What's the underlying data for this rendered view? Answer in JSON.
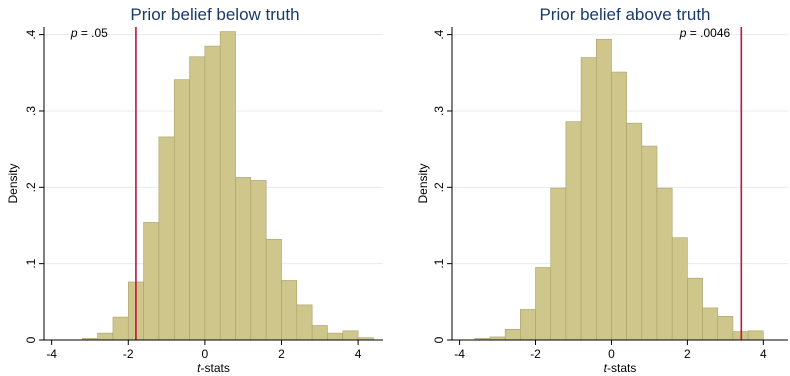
{
  "colors": {
    "bar_fill": "#cfc68c",
    "bar_stroke": "#a8a06a",
    "ref_line": "#c0143c",
    "grid": "#e6eaf0",
    "title": "#1a3a6b"
  },
  "chart_data": [
    {
      "type": "bar",
      "title": "Prior belief below truth",
      "xlabel_italic": "t",
      "xlabel_rest": "-stats",
      "ylabel": "Density",
      "xlim": [
        -4.2,
        4.65
      ],
      "ylim": [
        0,
        0.41
      ],
      "xticks": [
        -4,
        -2,
        0,
        2,
        4
      ],
      "xtick_labels": [
        "-4",
        "-2",
        "0",
        "2",
        "4"
      ],
      "yticks": [
        0,
        0.1,
        0.2,
        0.3,
        0.4
      ],
      "ytick_labels": [
        "0",
        ".1",
        ".2",
        ".3",
        ".4"
      ],
      "grid": true,
      "bin_edges": [
        -3.2,
        -2.8,
        -2.4,
        -2.0,
        -1.6,
        -1.2,
        -0.8,
        -0.4,
        0.0,
        0.4,
        0.8,
        1.2,
        1.6,
        2.0,
        2.4,
        2.8,
        3.2,
        3.6,
        4.0,
        4.4
      ],
      "values": [
        0.002,
        0.009,
        0.03,
        0.076,
        0.154,
        0.266,
        0.341,
        0.371,
        0.385,
        0.404,
        0.213,
        0.209,
        0.132,
        0.078,
        0.046,
        0.019,
        0.009,
        0.012,
        0.003
      ],
      "ref_x": -1.8,
      "annotation_italic": "p",
      "annotation_rest": " = .05",
      "annotation_x": -3.5,
      "annotation_y": 0.397
    },
    {
      "type": "bar",
      "title": "Prior belief above truth",
      "xlabel_italic": "t",
      "xlabel_rest": "-stats",
      "ylabel": "Density",
      "xlim": [
        -4.2,
        4.65
      ],
      "ylim": [
        0,
        0.41
      ],
      "xticks": [
        -4,
        -2,
        0,
        2,
        4
      ],
      "xtick_labels": [
        "-4",
        "-2",
        "0",
        "2",
        "4"
      ],
      "yticks": [
        0,
        0.1,
        0.2,
        0.3,
        0.4
      ],
      "ytick_labels": [
        "0",
        ".1",
        ".2",
        ".3",
        ".4"
      ],
      "grid": true,
      "bin_edges": [
        -3.6,
        -3.2,
        -2.8,
        -2.4,
        -2.0,
        -1.6,
        -1.2,
        -0.8,
        -0.4,
        0.0,
        0.4,
        0.8,
        1.2,
        1.6,
        2.0,
        2.4,
        2.8,
        3.2,
        3.6,
        4.0
      ],
      "values": [
        0.002,
        0.004,
        0.014,
        0.04,
        0.095,
        0.199,
        0.286,
        0.37,
        0.394,
        0.351,
        0.284,
        0.254,
        0.199,
        0.134,
        0.081,
        0.042,
        0.031,
        0.011,
        0.012
      ],
      "ref_x": 3.42,
      "annotation_italic": "p",
      "annotation_rest": " = .0046",
      "annotation_x": 1.8,
      "annotation_y": 0.397
    }
  ]
}
